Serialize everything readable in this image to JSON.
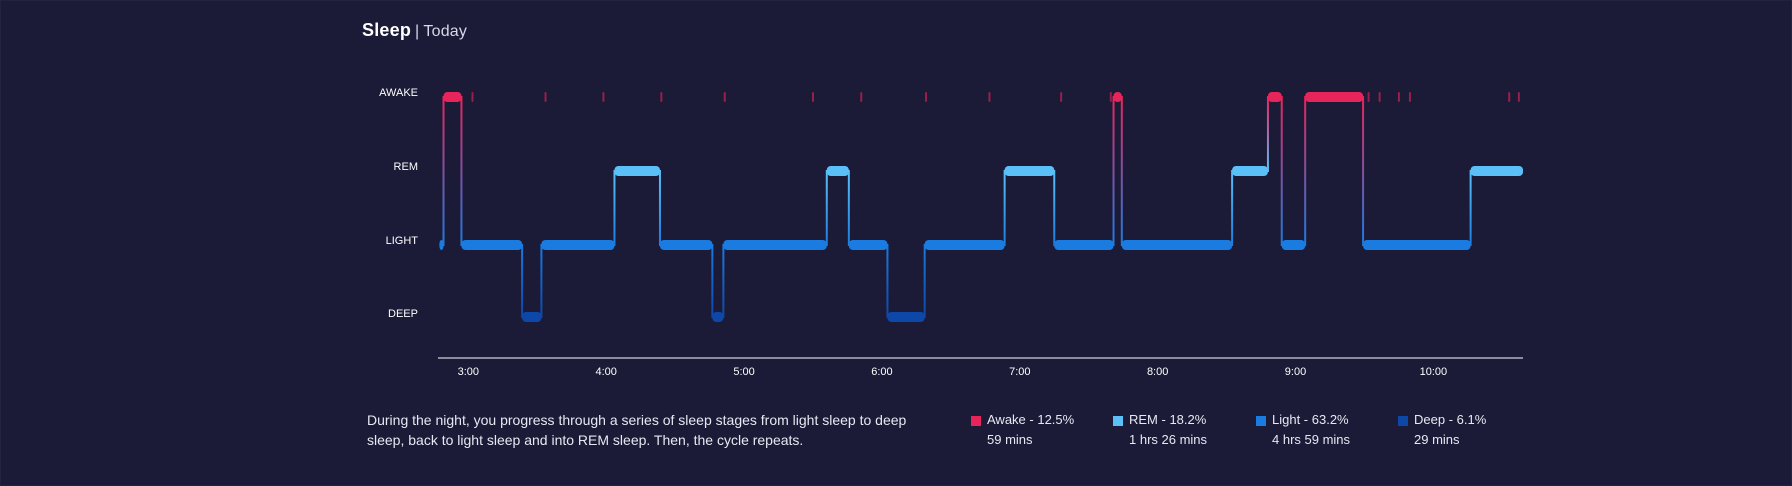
{
  "header": {
    "title": "Sleep",
    "separator": "|",
    "subtitle": "Today"
  },
  "description": "During the night, you progress through a series of sleep stages from light sleep to deep sleep, back to light sleep and into REM sleep. Then, the cycle repeats.",
  "legend": [
    {
      "label": "Awake - 12.5%",
      "duration": "59 mins",
      "color": "#e8255a"
    },
    {
      "label": "REM - 18.2%",
      "duration": "1 hrs 26 mins",
      "color": "#5bc0f8"
    },
    {
      "label": "Light - 63.2%",
      "duration": "4 hrs 59 mins",
      "color": "#1a7ce0"
    },
    {
      "label": "Deep - 6.1%",
      "duration": "29 mins",
      "color": "#0d47a8"
    }
  ],
  "chart_data": {
    "type": "line",
    "x_unit": "hours",
    "xlim": [
      2.78,
      10.65
    ],
    "x_ticks": [
      {
        "value": 3,
        "label": "3:00"
      },
      {
        "value": 4,
        "label": "4:00"
      },
      {
        "value": 5,
        "label": "5:00"
      },
      {
        "value": 6,
        "label": "6:00"
      },
      {
        "value": 7,
        "label": "7:00"
      },
      {
        "value": 8,
        "label": "8:00"
      },
      {
        "value": 9,
        "label": "9:00"
      },
      {
        "value": 10,
        "label": "10:00"
      }
    ],
    "stages": [
      "AWAKE",
      "REM",
      "LIGHT",
      "DEEP"
    ],
    "stage_colors": {
      "AWAKE": "#e8255a",
      "REM": "#5bc0f8",
      "LIGHT": "#1a7ce0",
      "DEEP": "#0d47a8"
    },
    "segments": [
      {
        "stage": "LIGHT",
        "start": 2.79,
        "end": 2.82
      },
      {
        "stage": "AWAKE",
        "start": 2.82,
        "end": 2.95
      },
      {
        "stage": "LIGHT",
        "start": 2.95,
        "end": 3.39
      },
      {
        "stage": "DEEP",
        "start": 3.39,
        "end": 3.53
      },
      {
        "stage": "LIGHT",
        "start": 3.53,
        "end": 4.06
      },
      {
        "stage": "REM",
        "start": 4.06,
        "end": 4.39
      },
      {
        "stage": "LIGHT",
        "start": 4.39,
        "end": 4.77
      },
      {
        "stage": "DEEP",
        "start": 4.77,
        "end": 4.85
      },
      {
        "stage": "LIGHT",
        "start": 4.85,
        "end": 5.6
      },
      {
        "stage": "REM",
        "start": 5.6,
        "end": 5.76
      },
      {
        "stage": "LIGHT",
        "start": 5.76,
        "end": 6.04
      },
      {
        "stage": "DEEP",
        "start": 6.04,
        "end": 6.31
      },
      {
        "stage": "LIGHT",
        "start": 6.31,
        "end": 6.89
      },
      {
        "stage": "REM",
        "start": 6.89,
        "end": 7.25
      },
      {
        "stage": "LIGHT",
        "start": 7.25,
        "end": 7.68
      },
      {
        "stage": "AWAKE",
        "start": 7.68,
        "end": 7.74
      },
      {
        "stage": "LIGHT",
        "start": 7.74,
        "end": 8.54
      },
      {
        "stage": "REM",
        "start": 8.54,
        "end": 8.8
      },
      {
        "stage": "AWAKE",
        "start": 8.8,
        "end": 8.9
      },
      {
        "stage": "LIGHT",
        "start": 8.9,
        "end": 9.07
      },
      {
        "stage": "AWAKE",
        "start": 9.07,
        "end": 9.49
      },
      {
        "stage": "LIGHT",
        "start": 9.49,
        "end": 10.27
      },
      {
        "stage": "REM",
        "start": 10.27,
        "end": 10.65
      }
    ],
    "brief_awakenings": [
      3.03,
      3.56,
      3.98,
      4.4,
      4.86,
      5.5,
      5.85,
      6.32,
      6.78,
      7.3,
      7.66,
      9.53,
      9.61,
      9.75,
      9.83,
      10.55,
      10.62
    ]
  }
}
